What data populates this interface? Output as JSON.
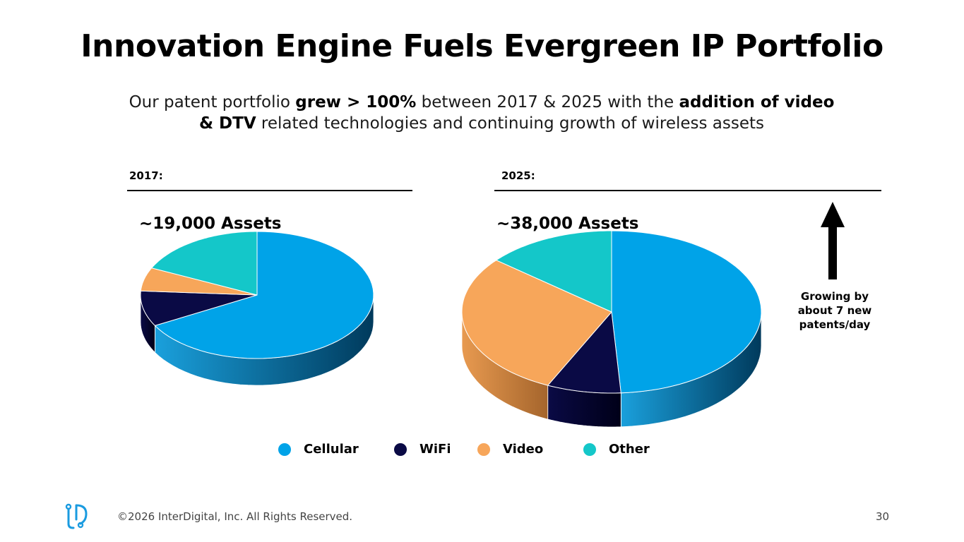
{
  "slide": {
    "title": "Innovation Engine Fuels Evergreen IP Portfolio",
    "subtitle": {
      "p1": "Our patent portfolio ",
      "b1": "grew > 100%",
      "p2": " between 2017 & 2025 with the ",
      "b2": "addition of video & DTV",
      "p3": " related technologies and continuing growth of wireless assets"
    },
    "growth_note": "Growing by about 7 new patents/day",
    "footer": "©2026 InterDigital, Inc. All Rights Reserved.",
    "page_number": "30"
  },
  "colors": {
    "Cellular": "#00A3E8",
    "WiFi": "#0A0A45",
    "Video": "#F7A65A",
    "Other": "#14C7C9"
  },
  "chart_data": [
    {
      "type": "pie",
      "year_label": "2017:",
      "title": "~19,000 Assets",
      "categories": [
        "Cellular",
        "WiFi",
        "Video",
        "Other"
      ],
      "values": [
        67,
        9,
        6,
        18
      ],
      "unit": "percent (estimated)"
    },
    {
      "type": "pie",
      "year_label": "2025:",
      "title": "~38,000 Assets",
      "categories": [
        "Cellular",
        "WiFi",
        "Video",
        "Other"
      ],
      "values": [
        49,
        8,
        29,
        14
      ],
      "unit": "percent (estimated)"
    }
  ],
  "legend": [
    "Cellular",
    "WiFi",
    "Video",
    "Other"
  ]
}
